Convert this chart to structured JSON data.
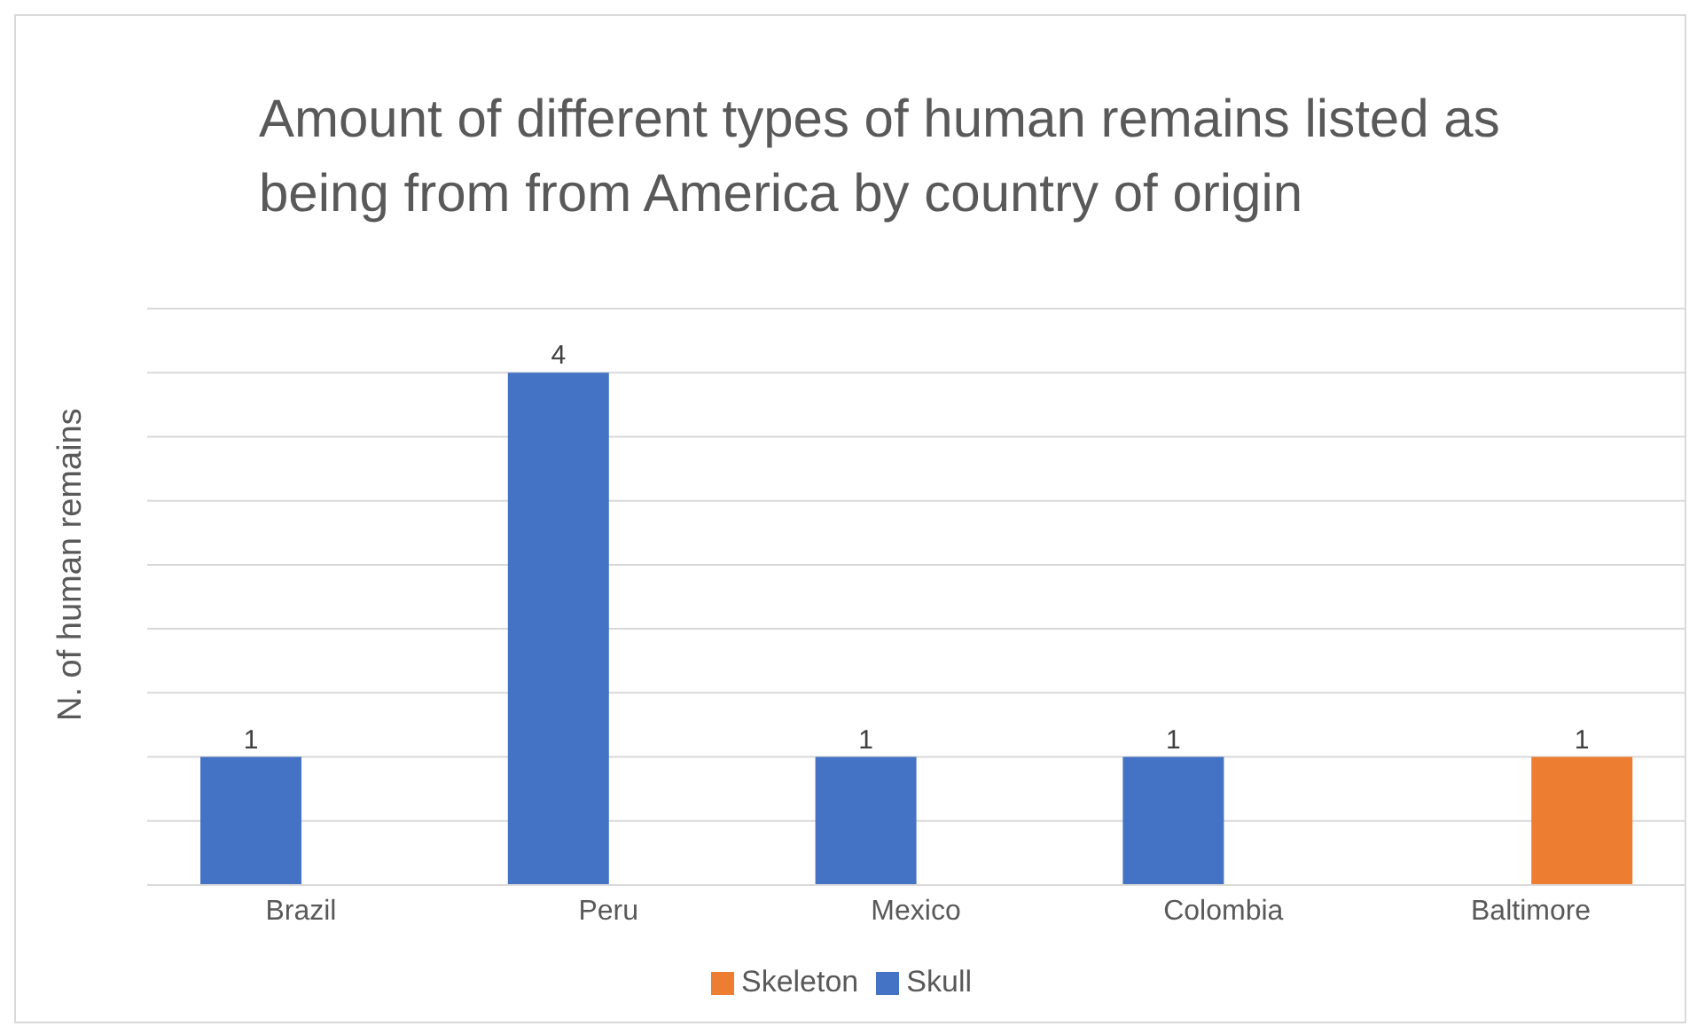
{
  "chart_data": {
    "type": "bar",
    "title": "Amount of different types of human remains listed as being from from America by country of origin",
    "ylabel": "N. of human remains",
    "categories": [
      "Brazil",
      "Peru",
      "Mexico",
      "Colombia",
      "Baltimore"
    ],
    "series": [
      {
        "name": "Skull",
        "color": "#4472c4",
        "values": [
          1,
          4,
          1,
          1,
          null
        ]
      },
      {
        "name": "Skeleton",
        "color": "#ed7d31",
        "values": [
          null,
          null,
          null,
          null,
          1
        ]
      }
    ],
    "ylim": [
      0,
      4.5
    ],
    "yticks": [
      0,
      {
        "value": 0.5,
        "label": null
      },
      {
        "value": 1,
        "label": null
      },
      {
        "value": 1.5,
        "label": null
      },
      {
        "value": 2,
        "label": null
      },
      {
        "value": 2.5,
        "label": null
      },
      {
        "value": 3,
        "label": null
      },
      {
        "value": 3.5,
        "label": null
      },
      {
        "value": 4,
        "label": null
      },
      {
        "value": 4.5,
        "label": null
      }
    ],
    "tick_labels": "x",
    "grid": "y",
    "legend": "bottom",
    "data_labels": true
  }
}
